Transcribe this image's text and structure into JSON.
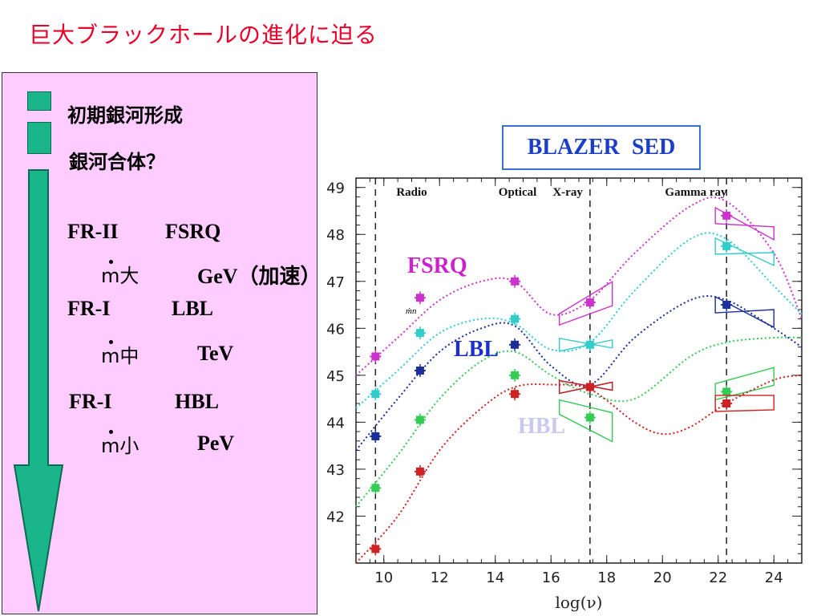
{
  "title": "巨大ブラックホールの進化に迫る",
  "timeline": {
    "items": [
      "初期銀河形成",
      "銀河合体？"
    ],
    "groups": [
      {
        "class1": "FR-II",
        "class2": "FSRQ",
        "mdot_label": "m",
        "mdot_size": "大",
        "energy": "GeV（加速）"
      },
      {
        "class1": "FR-I",
        "class2": "LBL",
        "mdot_label": "m",
        "mdot_size": "中",
        "energy": "TeV"
      },
      {
        "class1": "FR-I",
        "class2": "HBL",
        "mdot_label": "m",
        "mdot_size": "小",
        "energy": "PeV"
      }
    ],
    "arrow_color": "#1bb58a",
    "panel_color": "#ffccff"
  },
  "sed_box": {
    "label": "BLAZER  SED"
  },
  "chart_data": {
    "type": "scatter",
    "xlabel": "log(ν)",
    "ylabel": "",
    "xlim": [
      9,
      25
    ],
    "ylim": [
      41,
      49.2
    ],
    "xticks": [
      10,
      12,
      14,
      16,
      18,
      20,
      22,
      24
    ],
    "yticks": [
      42,
      43,
      44,
      45,
      46,
      47,
      48,
      49
    ],
    "bands": [
      "Radio",
      "Optical",
      "X-ray",
      "Gamma ray"
    ],
    "vlines": [
      9.7,
      17.4,
      22.3
    ],
    "series_labels": [
      {
        "text": "FSRQ",
        "color": "#cc22cc"
      },
      {
        "text": "LBL",
        "color": "#1a2fcc"
      },
      {
        "text": "HBL",
        "color": "#c8c8f0"
      }
    ],
    "small_label": "ṁn",
    "series": [
      {
        "color": "#cc33cc",
        "points": [
          [
            9.7,
            45.4
          ],
          [
            11.3,
            46.65
          ],
          [
            14.7,
            47.0
          ],
          [
            17.4,
            46.55
          ],
          [
            22.3,
            48.4
          ]
        ],
        "curve": [
          [
            9.0,
            45.0
          ],
          [
            10.5,
            45.8
          ],
          [
            12,
            46.6
          ],
          [
            13.5,
            47.0
          ],
          [
            14.7,
            47.0
          ],
          [
            16,
            46.3
          ],
          [
            17.4,
            46.6
          ],
          [
            19,
            47.6
          ],
          [
            21,
            48.6
          ],
          [
            22.3,
            48.7
          ],
          [
            24,
            47.6
          ],
          [
            25,
            46.2
          ]
        ]
      },
      {
        "color": "#33cccc",
        "points": [
          [
            9.7,
            44.6
          ],
          [
            11.3,
            45.9
          ],
          [
            14.7,
            46.2
          ],
          [
            17.4,
            45.65
          ],
          [
            22.3,
            47.75
          ]
        ],
        "curve": [
          [
            9.0,
            44.3
          ],
          [
            10.5,
            45.1
          ],
          [
            12,
            45.9
          ],
          [
            13.5,
            46.2
          ],
          [
            14.7,
            46.1
          ],
          [
            16,
            45.55
          ],
          [
            17.4,
            45.7
          ],
          [
            19,
            46.8
          ],
          [
            21,
            47.9
          ],
          [
            22.3,
            47.9
          ],
          [
            24,
            46.9
          ],
          [
            25,
            46.3
          ]
        ]
      },
      {
        "color": "#1a2f99",
        "points": [
          [
            9.7,
            43.7
          ],
          [
            11.3,
            45.1
          ],
          [
            14.7,
            45.65
          ],
          [
            17.4,
            44.75
          ],
          [
            22.3,
            46.5
          ]
        ],
        "curve": [
          [
            9.0,
            43.4
          ],
          [
            10.5,
            44.5
          ],
          [
            12,
            45.5
          ],
          [
            13.5,
            46.0
          ],
          [
            14.7,
            46.05
          ],
          [
            16,
            45.2
          ],
          [
            17.4,
            44.8
          ],
          [
            19,
            45.8
          ],
          [
            21,
            46.6
          ],
          [
            22.3,
            46.6
          ],
          [
            24,
            46.0
          ],
          [
            25,
            45.6
          ]
        ]
      },
      {
        "color": "#33cc55",
        "points": [
          [
            9.7,
            42.6
          ],
          [
            11.3,
            44.05
          ],
          [
            14.7,
            45.0
          ],
          [
            17.4,
            44.1
          ],
          [
            22.3,
            44.65
          ]
        ],
        "curve": [
          [
            9.0,
            42.2
          ],
          [
            10.5,
            43.3
          ],
          [
            12,
            44.5
          ],
          [
            13.5,
            45.3
          ],
          [
            14.7,
            45.5
          ],
          [
            16,
            45.0
          ],
          [
            17.4,
            44.6
          ],
          [
            19,
            44.5
          ],
          [
            21,
            45.4
          ],
          [
            22.3,
            45.7
          ],
          [
            24,
            45.8
          ],
          [
            25,
            45.8
          ]
        ]
      },
      {
        "color": "#cc2222",
        "points": [
          [
            9.7,
            41.3
          ],
          [
            11.3,
            42.95
          ],
          [
            14.7,
            44.6
          ],
          [
            17.4,
            44.75
          ],
          [
            22.3,
            44.4
          ]
        ],
        "curve": [
          [
            9.0,
            41.0
          ],
          [
            10.5,
            42.0
          ],
          [
            12,
            43.4
          ],
          [
            13.5,
            44.3
          ],
          [
            14.7,
            44.75
          ],
          [
            16,
            44.8
          ],
          [
            17.4,
            44.7
          ],
          [
            19,
            44.0
          ],
          [
            20,
            43.75
          ],
          [
            21,
            43.9
          ],
          [
            22.3,
            44.4
          ],
          [
            24,
            44.9
          ],
          [
            25,
            45.0
          ]
        ]
      }
    ]
  }
}
